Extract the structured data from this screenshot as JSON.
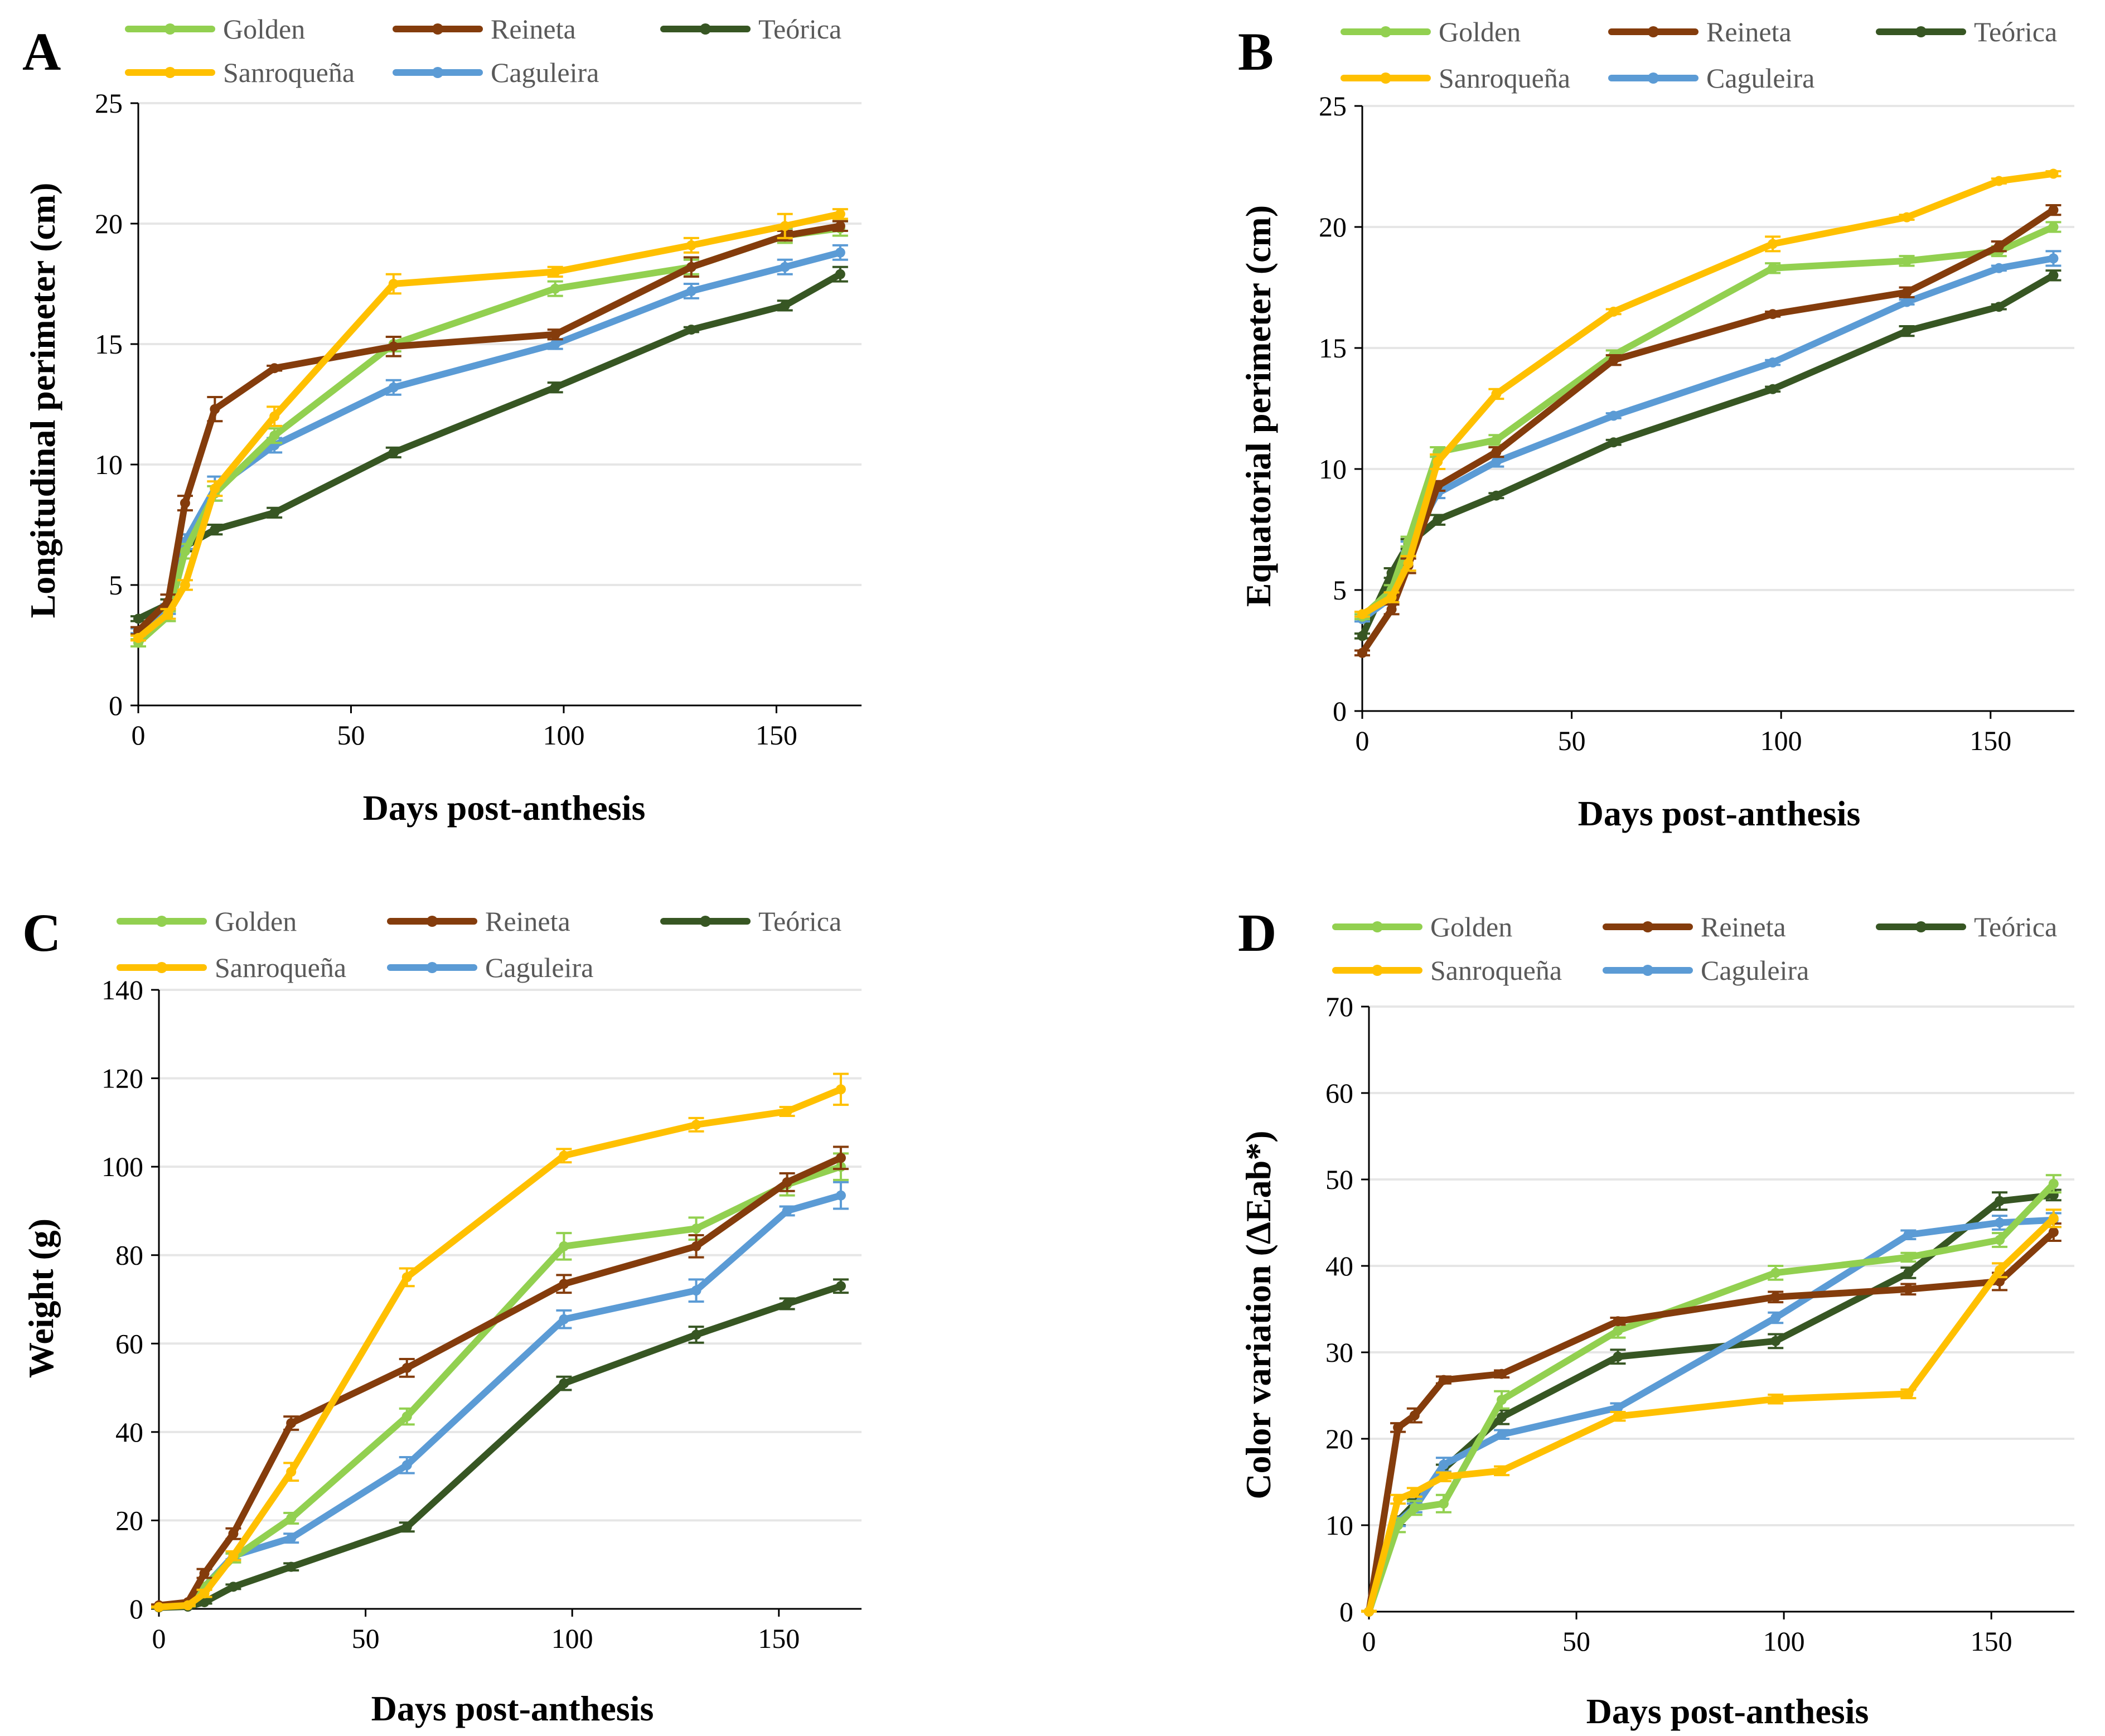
{
  "figure": {
    "legend_labels": [
      "Golden",
      "Reineta",
      "Teórica",
      "Sanroqueña",
      "Caguleira"
    ]
  },
  "chart_data": [
    {
      "panel": "A",
      "type": "line",
      "xlabel": "Days post-anthesis",
      "ylabel": "Longitudinal perimeter (cm)",
      "xlim": [
        0,
        170
      ],
      "ylim": [
        0,
        25
      ],
      "xticks": [
        0,
        50,
        100,
        150
      ],
      "yticks": [
        0,
        5,
        10,
        15,
        20,
        25
      ],
      "series": [
        {
          "name": "Golden",
          "color": "#92D050",
          "x": [
            0,
            7,
            11,
            18,
            32,
            60,
            98,
            130,
            152,
            165
          ],
          "y": [
            2.6,
            3.7,
            6.4,
            8.8,
            11.2,
            15.0,
            17.3,
            18.2,
            19.5,
            19.8
          ],
          "err": [
            0.15,
            0.2,
            0.3,
            0.3,
            0.3,
            0.3,
            0.3,
            0.3,
            0.3,
            0.3
          ]
        },
        {
          "name": "Reineta",
          "color": "#843C0C",
          "x": [
            0,
            7,
            11,
            18,
            32,
            60,
            98,
            130,
            152,
            165
          ],
          "y": [
            3.1,
            4.3,
            8.4,
            12.3,
            14.0,
            14.9,
            15.4,
            18.2,
            19.5,
            19.9
          ],
          "err": [
            0.15,
            0.3,
            0.3,
            0.5,
            0.1,
            0.4,
            0.2,
            0.4,
            0.2,
            0.2
          ]
        },
        {
          "name": "Teórica",
          "color": "#375623",
          "x": [
            0,
            7,
            11,
            18,
            32,
            60,
            98,
            130,
            152,
            165
          ],
          "y": [
            3.6,
            4.2,
            6.6,
            7.3,
            8.0,
            10.5,
            13.2,
            15.6,
            16.6,
            17.9
          ],
          "err": [
            0.1,
            0.2,
            0.2,
            0.2,
            0.2,
            0.2,
            0.2,
            0.1,
            0.2,
            0.3
          ]
        },
        {
          "name": "Sanroqueña",
          "color": "#FFC000",
          "x": [
            0,
            7,
            11,
            18,
            32,
            60,
            98,
            130,
            152,
            165
          ],
          "y": [
            2.8,
            3.8,
            5.0,
            9.0,
            12.0,
            17.5,
            18.0,
            19.1,
            19.9,
            20.4
          ],
          "err": [
            0.1,
            0.2,
            0.2,
            0.3,
            0.4,
            0.4,
            0.2,
            0.3,
            0.5,
            0.2
          ]
        },
        {
          "name": "Caguleira",
          "color": "#5B9BD5",
          "x": [
            0,
            7,
            11,
            18,
            32,
            60,
            98,
            130,
            152,
            165
          ],
          "y": [
            3.1,
            4.0,
            6.8,
            9.0,
            10.8,
            13.2,
            15.0,
            17.2,
            18.2,
            18.8
          ],
          "err": [
            0.1,
            0.2,
            0.3,
            0.5,
            0.3,
            0.3,
            0.2,
            0.3,
            0.3,
            0.3
          ]
        }
      ]
    },
    {
      "panel": "B",
      "type": "line",
      "xlabel": "Days post-anthesis",
      "ylabel": "Equatorial perimeter (cm)",
      "xlim": [
        0,
        170
      ],
      "ylim": [
        0,
        25
      ],
      "xticks": [
        0,
        50,
        100,
        150
      ],
      "yticks": [
        0,
        5,
        10,
        15,
        20,
        25
      ],
      "series": [
        {
          "name": "Golden",
          "color": "#92D050",
          "x": [
            0,
            7,
            11,
            18,
            32,
            60,
            98,
            130,
            152,
            165
          ],
          "y": [
            3.9,
            5.0,
            7.0,
            10.7,
            11.2,
            14.7,
            18.3,
            18.6,
            19.0,
            20.0
          ],
          "err": [
            0.1,
            0.2,
            0.2,
            0.2,
            0.2,
            0.2,
            0.2,
            0.2,
            0.2,
            0.2
          ]
        },
        {
          "name": "Reineta",
          "color": "#843C0C",
          "x": [
            0,
            7,
            11,
            18,
            32,
            60,
            98,
            130,
            152,
            165
          ],
          "y": [
            2.4,
            4.2,
            6.0,
            9.3,
            10.7,
            14.5,
            16.4,
            17.3,
            19.2,
            20.7
          ],
          "err": [
            0.1,
            0.2,
            0.3,
            0.2,
            0.2,
            0.2,
            0.1,
            0.2,
            0.2,
            0.2
          ]
        },
        {
          "name": "Teórica",
          "color": "#375623",
          "x": [
            0,
            7,
            11,
            18,
            32,
            60,
            98,
            130,
            152,
            165
          ],
          "y": [
            3.1,
            5.7,
            6.9,
            7.9,
            8.9,
            11.1,
            13.3,
            15.7,
            16.7,
            18.0
          ],
          "err": [
            0.1,
            0.2,
            0.2,
            0.2,
            0.1,
            0.1,
            0.1,
            0.2,
            0.1,
            0.2
          ]
        },
        {
          "name": "Sanroqueña",
          "color": "#FFC000",
          "x": [
            0,
            7,
            11,
            18,
            32,
            60,
            98,
            130,
            152,
            165
          ],
          "y": [
            4.0,
            4.7,
            6.1,
            10.3,
            13.1,
            16.5,
            19.3,
            20.4,
            21.9,
            22.2
          ],
          "err": [
            0.1,
            0.2,
            0.3,
            0.3,
            0.2,
            0.1,
            0.3,
            0.1,
            0.1,
            0.1
          ]
        },
        {
          "name": "Caguleira",
          "color": "#5B9BD5",
          "x": [
            0,
            7,
            11,
            18,
            32,
            60,
            98,
            130,
            152,
            165
          ],
          "y": [
            3.8,
            4.7,
            6.8,
            9.0,
            10.3,
            12.2,
            14.4,
            16.9,
            18.3,
            18.7
          ],
          "err": [
            0.1,
            0.2,
            0.2,
            0.2,
            0.2,
            0.1,
            0.1,
            0.1,
            0.1,
            0.3
          ]
        }
      ]
    },
    {
      "panel": "C",
      "type": "line",
      "xlabel": "Days post-anthesis",
      "ylabel": "Weight (g)",
      "xlim": [
        0,
        170
      ],
      "ylim": [
        0,
        140
      ],
      "xticks": [
        0,
        50,
        100,
        150
      ],
      "yticks": [
        0,
        20,
        40,
        60,
        80,
        100,
        120,
        140
      ],
      "series": [
        {
          "name": "Golden",
          "color": "#92D050",
          "x": [
            0,
            7,
            11,
            18,
            32,
            60,
            98,
            130,
            152,
            165
          ],
          "y": [
            0.5,
            1.0,
            5.0,
            11.5,
            20.5,
            43.5,
            82.0,
            86.0,
            96.0,
            100.0
          ],
          "err": [
            0.2,
            0.3,
            0.5,
            1.0,
            1.2,
            1.8,
            3.0,
            2.5,
            2.5,
            3.0
          ]
        },
        {
          "name": "Reineta",
          "color": "#843C0C",
          "x": [
            0,
            7,
            11,
            18,
            32,
            60,
            98,
            130,
            152,
            165
          ],
          "y": [
            0.8,
            1.5,
            8.0,
            17.0,
            42.0,
            54.5,
            73.5,
            82.0,
            96.5,
            102.0
          ],
          "err": [
            0.2,
            0.3,
            1.0,
            1.2,
            1.5,
            2.0,
            2.0,
            2.5,
            2.0,
            2.5
          ]
        },
        {
          "name": "Teórica",
          "color": "#375623",
          "x": [
            0,
            7,
            11,
            18,
            32,
            60,
            98,
            130,
            152,
            165
          ],
          "y": [
            0.3,
            0.5,
            1.5,
            5.0,
            9.5,
            18.5,
            51.0,
            62.0,
            69.0,
            73.0
          ],
          "err": [
            0.1,
            0.2,
            0.3,
            0.5,
            0.8,
            1.0,
            1.5,
            1.8,
            1.2,
            1.5
          ]
        },
        {
          "name": "Sanroqueña",
          "color": "#FFC000",
          "x": [
            0,
            7,
            11,
            18,
            32,
            60,
            98,
            130,
            152,
            165
          ],
          "y": [
            0.4,
            0.8,
            3.5,
            12.0,
            31.0,
            75.0,
            102.5,
            109.5,
            112.5,
            117.5
          ],
          "err": [
            0.1,
            0.2,
            0.8,
            1.0,
            2.0,
            2.0,
            1.5,
            1.5,
            1.0,
            3.5
          ]
        },
        {
          "name": "Caguleira",
          "color": "#5B9BD5",
          "x": [
            0,
            7,
            11,
            18,
            32,
            60,
            98,
            130,
            152,
            165
          ],
          "y": [
            0.5,
            0.8,
            5.0,
            12.0,
            16.0,
            32.5,
            65.5,
            72.0,
            90.0,
            93.5
          ],
          "err": [
            0.2,
            0.2,
            0.5,
            0.8,
            1.0,
            1.8,
            2.0,
            2.5,
            1.0,
            3.0
          ]
        }
      ]
    },
    {
      "panel": "D",
      "type": "line",
      "xlabel": "Days post-anthesis",
      "ylabel": "Color variation (ΔEab*)",
      "xlim": [
        0,
        170
      ],
      "ylim": [
        0,
        70
      ],
      "xticks": [
        0,
        50,
        100,
        150
      ],
      "yticks": [
        0,
        10,
        20,
        30,
        40,
        50,
        60,
        70
      ],
      "series": [
        {
          "name": "Golden",
          "color": "#92D050",
          "x": [
            0,
            7,
            11,
            18,
            32,
            60,
            98,
            130,
            152,
            165
          ],
          "y": [
            0,
            10.0,
            12.0,
            12.5,
            24.5,
            32.5,
            39.2,
            41.0,
            43.0,
            49.5
          ],
          "err": [
            0.1,
            0.8,
            0.8,
            1.0,
            1.0,
            0.8,
            0.8,
            0.5,
            0.8,
            1.0
          ]
        },
        {
          "name": "Reineta",
          "color": "#843C0C",
          "x": [
            0,
            7,
            11,
            18,
            32,
            60,
            98,
            130,
            152,
            165
          ],
          "y": [
            0,
            21.3,
            22.7,
            26.8,
            27.5,
            33.6,
            36.4,
            37.3,
            38.2,
            43.9
          ],
          "err": [
            0.1,
            0.5,
            0.8,
            0.4,
            0.4,
            0.4,
            0.6,
            0.6,
            1.0,
            1.0
          ]
        },
        {
          "name": "Teórica",
          "color": "#375623",
          "x": [
            0,
            7,
            11,
            18,
            32,
            60,
            98,
            130,
            152,
            165
          ],
          "y": [
            0,
            10.5,
            12.5,
            16.5,
            22.5,
            29.5,
            31.3,
            39.2,
            47.5,
            48.2
          ],
          "err": [
            0.1,
            0.5,
            0.5,
            0.5,
            0.8,
            0.8,
            0.8,
            0.6,
            1.0,
            0.6
          ]
        },
        {
          "name": "Sanroqueña",
          "color": "#FFC000",
          "x": [
            0,
            7,
            11,
            18,
            32,
            60,
            98,
            130,
            152,
            165
          ],
          "y": [
            0,
            13.0,
            13.8,
            15.6,
            16.3,
            22.6,
            24.6,
            25.2,
            39.5,
            45.5
          ],
          "err": [
            0.1,
            0.5,
            0.5,
            0.5,
            0.5,
            0.5,
            0.5,
            0.5,
            0.8,
            1.0
          ]
        },
        {
          "name": "Caguleira",
          "color": "#5B9BD5",
          "x": [
            0,
            7,
            11,
            18,
            32,
            60,
            98,
            130,
            152,
            165
          ],
          "y": [
            0,
            10.4,
            12.0,
            17.0,
            20.5,
            23.6,
            34.0,
            43.6,
            45.0,
            45.3
          ],
          "err": [
            0.1,
            0.5,
            0.5,
            0.8,
            0.5,
            0.5,
            0.6,
            0.5,
            0.8,
            0.8
          ]
        }
      ]
    }
  ]
}
